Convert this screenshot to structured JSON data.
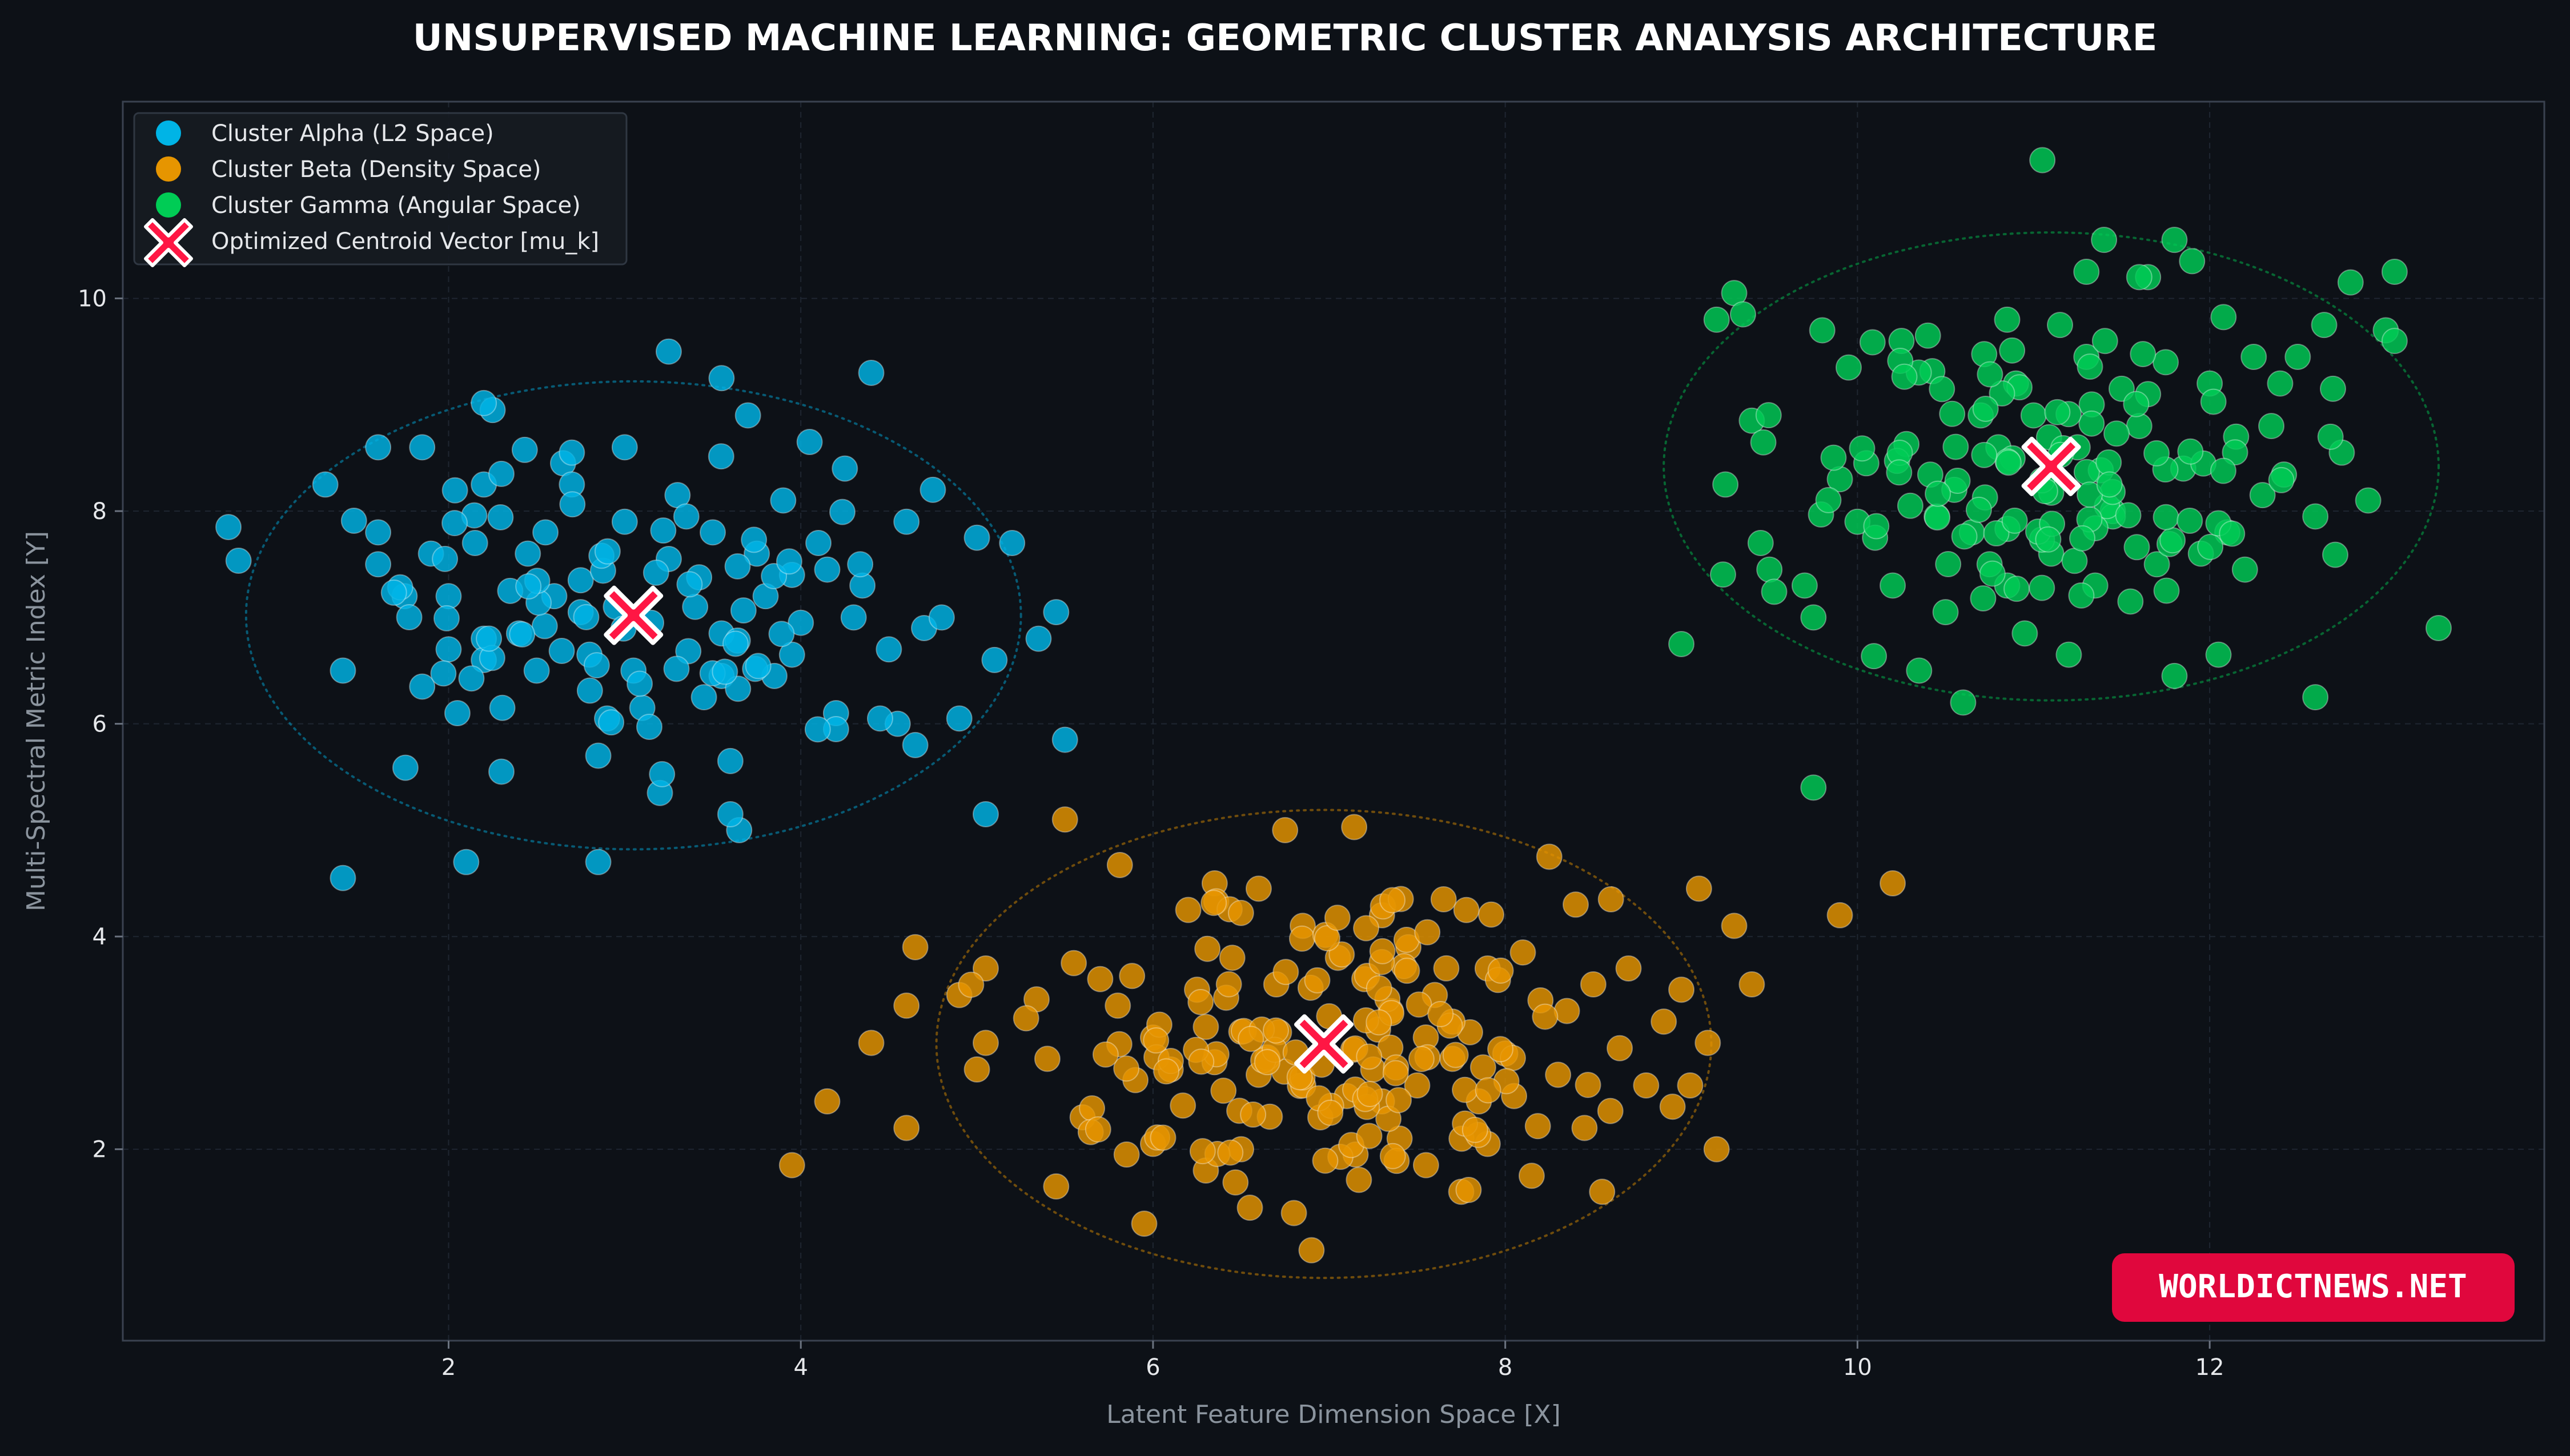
{
  "chart_data": {
    "type": "scatter",
    "title": "UNSUPERVISED MACHINE LEARNING: GEOMETRIC CLUSTER ANALYSIS ARCHITECTURE",
    "xlabel": "Latent Feature Dimension Space [X]",
    "ylabel": "Multi-Spectral Metric Index [Y]",
    "xlim": [
      0.15,
      13.9
    ],
    "ylim": [
      0.2,
      11.85
    ],
    "xticks": [
      2,
      4,
      6,
      8,
      10,
      12
    ],
    "yticks": [
      2,
      4,
      6,
      8,
      10
    ],
    "grid": true,
    "legend_position": "top-left",
    "series": [
      {
        "name": "Cluster Alpha (L2 Space)",
        "color": "#00b4e6",
        "centroid": [
          3.05,
          7.02
        ],
        "ellipse": {
          "rx": 2.2,
          "ry": 2.2
        },
        "points": [
          [
            0.75,
            7.85
          ],
          [
            1.3,
            8.25
          ],
          [
            1.4,
            6.5
          ],
          [
            1.4,
            4.55
          ],
          [
            1.6,
            8.6
          ],
          [
            1.85,
            8.6
          ],
          [
            1.6,
            7.8
          ],
          [
            1.6,
            7.5
          ],
          [
            1.75,
            7.2
          ],
          [
            1.85,
            6.35
          ],
          [
            1.9,
            7.6
          ],
          [
            2.0,
            6.7
          ],
          [
            2.05,
            6.1
          ],
          [
            2.1,
            4.7
          ],
          [
            2.15,
            7.7
          ],
          [
            2.2,
            8.25
          ],
          [
            2.25,
            8.95
          ],
          [
            2.3,
            8.35
          ],
          [
            2.2,
            6.8
          ],
          [
            2.2,
            6.6
          ],
          [
            2.3,
            5.55
          ],
          [
            2.35,
            7.25
          ],
          [
            2.4,
            6.85
          ],
          [
            2.45,
            7.6
          ],
          [
            2.5,
            6.5
          ],
          [
            2.55,
            7.8
          ],
          [
            2.6,
            7.2
          ],
          [
            2.65,
            8.45
          ],
          [
            2.7,
            8.55
          ],
          [
            2.7,
            8.25
          ],
          [
            2.75,
            7.35
          ],
          [
            2.75,
            7.05
          ],
          [
            2.8,
            6.65
          ],
          [
            2.85,
            5.7
          ],
          [
            2.9,
            6.05
          ],
          [
            2.95,
            7.1
          ],
          [
            3.0,
            8.6
          ],
          [
            3.0,
            7.9
          ],
          [
            3.05,
            6.5
          ],
          [
            3.1,
            6.15
          ],
          [
            3.15,
            6.95
          ],
          [
            3.2,
            5.35
          ],
          [
            3.25,
            7.55
          ],
          [
            3.3,
            8.15
          ],
          [
            3.35,
            7.95
          ],
          [
            3.4,
            7.1
          ],
          [
            3.45,
            6.25
          ],
          [
            3.5,
            7.8
          ],
          [
            3.55,
            6.85
          ],
          [
            3.6,
            5.65
          ],
          [
            3.65,
            5.0
          ],
          [
            3.7,
            8.9
          ],
          [
            3.75,
            7.6
          ],
          [
            3.8,
            7.2
          ],
          [
            3.85,
            6.45
          ],
          [
            3.9,
            8.1
          ],
          [
            3.95,
            7.4
          ],
          [
            4.0,
            6.95
          ],
          [
            4.05,
            8.65
          ],
          [
            4.1,
            7.7
          ],
          [
            4.15,
            7.45
          ],
          [
            4.2,
            6.1
          ],
          [
            4.25,
            8.4
          ],
          [
            4.3,
            7.0
          ],
          [
            4.35,
            7.3
          ],
          [
            4.4,
            9.3
          ],
          [
            4.5,
            6.7
          ],
          [
            4.55,
            6.0
          ],
          [
            4.6,
            7.9
          ],
          [
            4.65,
            5.8
          ],
          [
            4.7,
            6.9
          ],
          [
            4.75,
            8.2
          ],
          [
            4.8,
            7.0
          ],
          [
            4.9,
            6.05
          ],
          [
            5.0,
            7.75
          ],
          [
            5.05,
            5.15
          ],
          [
            5.1,
            6.6
          ],
          [
            5.2,
            7.7
          ],
          [
            5.35,
            6.8
          ],
          [
            5.45,
            7.05
          ],
          [
            5.5,
            5.85
          ],
          [
            3.25,
            9.5
          ],
          [
            3.55,
            9.25
          ],
          [
            4.2,
            5.95
          ],
          [
            4.45,
            6.05
          ],
          [
            3.55,
            6.45
          ],
          [
            2.0,
            7.2
          ],
          [
            2.85,
            4.7
          ],
          [
            3.6,
            5.15
          ],
          [
            3.95,
            6.65
          ]
        ],
        "marker_count": 150
      },
      {
        "name": "Cluster Beta (Density Space)",
        "color": "#e69500",
        "centroid": [
          6.97,
          2.99
        ],
        "ellipse": {
          "rx": 2.2,
          "ry": 2.2
        },
        "points": [
          [
            3.95,
            1.85
          ],
          [
            4.15,
            2.45
          ],
          [
            4.4,
            3.0
          ],
          [
            4.6,
            2.2
          ],
          [
            4.6,
            3.35
          ],
          [
            4.65,
            3.9
          ],
          [
            4.9,
            3.45
          ],
          [
            5.0,
            2.75
          ],
          [
            5.05,
            3.0
          ],
          [
            5.05,
            3.7
          ],
          [
            5.4,
            2.85
          ],
          [
            5.45,
            1.65
          ],
          [
            5.5,
            5.1
          ],
          [
            5.55,
            3.75
          ],
          [
            5.6,
            2.3
          ],
          [
            5.7,
            3.6
          ],
          [
            5.8,
            3.35
          ],
          [
            5.85,
            1.95
          ],
          [
            5.9,
            2.65
          ],
          [
            5.95,
            1.3
          ],
          [
            6.0,
            3.05
          ],
          [
            6.1,
            2.75
          ],
          [
            6.2,
            4.25
          ],
          [
            6.25,
            3.5
          ],
          [
            6.3,
            1.8
          ],
          [
            6.35,
            4.5
          ],
          [
            6.4,
            2.55
          ],
          [
            6.45,
            3.8
          ],
          [
            6.5,
            2.0
          ],
          [
            6.55,
            1.45
          ],
          [
            6.6,
            4.45
          ],
          [
            6.65,
            2.85
          ],
          [
            6.7,
            3.55
          ],
          [
            6.75,
            5.0
          ],
          [
            6.8,
            1.4
          ],
          [
            6.85,
            4.1
          ],
          [
            6.9,
            1.05
          ],
          [
            6.95,
            2.3
          ],
          [
            7.0,
            3.25
          ],
          [
            7.05,
            3.8
          ],
          [
            7.1,
            2.5
          ],
          [
            7.15,
            1.95
          ],
          [
            7.2,
            3.6
          ],
          [
            7.25,
            2.75
          ],
          [
            7.3,
            4.2
          ],
          [
            7.35,
            3.3
          ],
          [
            7.4,
            2.1
          ],
          [
            7.45,
            3.9
          ],
          [
            7.5,
            2.6
          ],
          [
            7.55,
            1.85
          ],
          [
            7.6,
            3.45
          ],
          [
            7.65,
            4.35
          ],
          [
            7.7,
            2.85
          ],
          [
            7.75,
            1.6
          ],
          [
            7.8,
            3.1
          ],
          [
            7.85,
            2.45
          ],
          [
            7.9,
            3.7
          ],
          [
            8.0,
            2.9
          ],
          [
            8.05,
            2.5
          ],
          [
            8.1,
            3.85
          ],
          [
            8.15,
            1.75
          ],
          [
            8.2,
            3.4
          ],
          [
            8.25,
            4.75
          ],
          [
            8.3,
            2.7
          ],
          [
            8.35,
            3.3
          ],
          [
            8.4,
            4.3
          ],
          [
            8.45,
            2.2
          ],
          [
            8.5,
            3.55
          ],
          [
            8.55,
            1.6
          ],
          [
            8.6,
            4.35
          ],
          [
            8.65,
            2.95
          ],
          [
            8.7,
            3.7
          ],
          [
            8.8,
            2.6
          ],
          [
            8.9,
            3.2
          ],
          [
            8.95,
            2.4
          ],
          [
            9.0,
            3.5
          ],
          [
            9.05,
            2.6
          ],
          [
            9.1,
            4.45
          ],
          [
            9.15,
            3.0
          ],
          [
            9.2,
            2.0
          ],
          [
            9.3,
            4.1
          ],
          [
            9.4,
            3.55
          ],
          [
            9.9,
            4.2
          ],
          [
            10.2,
            4.5
          ],
          [
            6.0,
            2.05
          ],
          [
            6.3,
            3.15
          ],
          [
            7.3,
            2.45
          ],
          [
            7.9,
            2.05
          ],
          [
            6.6,
            2.7
          ],
          [
            7.7,
            3.2
          ]
        ],
        "marker_count": 220
      },
      {
        "name": "Cluster Gamma (Angular Space)",
        "color": "#00cc55",
        "centroid": [
          11.1,
          8.42
        ],
        "ellipse": {
          "rx": 2.2,
          "ry": 2.2
        },
        "points": [
          [
            9.0,
            6.75
          ],
          [
            9.2,
            9.8
          ],
          [
            9.25,
            8.25
          ],
          [
            9.3,
            10.05
          ],
          [
            9.35,
            9.85
          ],
          [
            9.4,
            8.85
          ],
          [
            9.45,
            7.7
          ],
          [
            9.5,
            7.45
          ],
          [
            9.75,
            5.4
          ],
          [
            9.7,
            7.3
          ],
          [
            9.75,
            7.0
          ],
          [
            9.8,
            9.7
          ],
          [
            9.9,
            8.3
          ],
          [
            9.95,
            9.35
          ],
          [
            10.0,
            7.9
          ],
          [
            10.05,
            8.45
          ],
          [
            10.1,
            7.75
          ],
          [
            10.2,
            7.3
          ],
          [
            10.25,
            9.6
          ],
          [
            10.3,
            8.05
          ],
          [
            10.35,
            6.5
          ],
          [
            10.4,
            9.65
          ],
          [
            10.45,
            7.95
          ],
          [
            10.5,
            7.05
          ],
          [
            10.55,
            8.2
          ],
          [
            10.6,
            6.2
          ],
          [
            10.65,
            7.8
          ],
          [
            10.7,
            8.9
          ],
          [
            10.75,
            7.5
          ],
          [
            10.8,
            8.6
          ],
          [
            10.85,
            7.3
          ],
          [
            10.9,
            9.2
          ],
          [
            10.95,
            6.85
          ],
          [
            11.0,
            8.9
          ],
          [
            11.05,
            11.3
          ],
          [
            11.1,
            7.6
          ],
          [
            11.15,
            9.75
          ],
          [
            11.2,
            6.65
          ],
          [
            11.25,
            8.6
          ],
          [
            11.3,
            9.45
          ],
          [
            11.35,
            7.3
          ],
          [
            11.4,
            10.55
          ],
          [
            11.45,
            8.0
          ],
          [
            11.5,
            9.15
          ],
          [
            11.55,
            7.15
          ],
          [
            11.6,
            8.8
          ],
          [
            11.65,
            10.2
          ],
          [
            11.7,
            7.5
          ],
          [
            11.75,
            9.4
          ],
          [
            11.8,
            6.45
          ],
          [
            11.85,
            8.4
          ],
          [
            11.9,
            10.35
          ],
          [
            11.95,
            7.6
          ],
          [
            12.0,
            9.2
          ],
          [
            12.05,
            6.65
          ],
          [
            12.1,
            7.8
          ],
          [
            12.15,
            8.7
          ],
          [
            12.2,
            7.45
          ],
          [
            12.25,
            9.45
          ],
          [
            12.3,
            8.15
          ],
          [
            12.35,
            8.8
          ],
          [
            12.4,
            9.2
          ],
          [
            12.5,
            9.45
          ],
          [
            12.6,
            7.95
          ],
          [
            12.65,
            9.75
          ],
          [
            12.7,
            9.15
          ],
          [
            12.75,
            8.55
          ],
          [
            12.8,
            10.15
          ],
          [
            12.9,
            8.1
          ],
          [
            13.0,
            9.7
          ],
          [
            13.05,
            9.6
          ],
          [
            13.05,
            10.25
          ],
          [
            13.3,
            6.9
          ],
          [
            12.6,
            6.25
          ],
          [
            11.6,
            10.2
          ],
          [
            11.8,
            10.55
          ],
          [
            11.3,
            10.25
          ],
          [
            10.85,
            9.8
          ],
          [
            11.45,
            7.95
          ],
          [
            11.65,
            9.1
          ]
        ],
        "marker_count": 180
      }
    ],
    "centroids_label": "Optimized Centroid Vector [mu_k]"
  },
  "watermark": "WORLDICTNEWS.NET",
  "colors": {
    "background": "#0d1117",
    "grid": "#1f2937",
    "axis": "#5a6472",
    "tick_text": "#e6e8eb",
    "label_text": "#8b949e",
    "centroid_fill": "#ff1744",
    "centroid_edge": "#ffffff",
    "watermark_bg": "#e0073d"
  }
}
